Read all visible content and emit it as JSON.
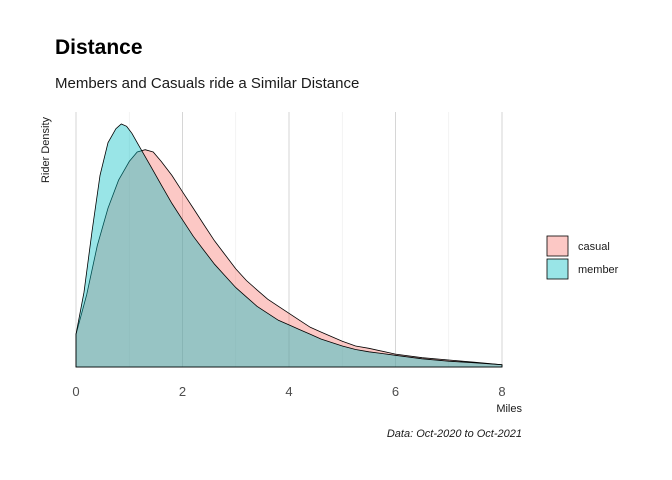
{
  "chart_data": {
    "type": "area",
    "title": "Distance",
    "subtitle": "Members and Casuals ride a Similar Distance",
    "caption": "Data: Oct-2020 to Oct-2021",
    "xlabel": "Miles",
    "ylabel": "Rider Density",
    "xlim": [
      0,
      8
    ],
    "ylim": [
      0,
      1
    ],
    "x_ticks": [
      0,
      2,
      4,
      6,
      8
    ],
    "y_ticks_shown": false,
    "grid": "vertical",
    "legend_position": "right",
    "series": [
      {
        "name": "casual",
        "color": "#F8766D",
        "x": [
          0,
          0.2,
          0.4,
          0.6,
          0.8,
          1.0,
          1.15,
          1.3,
          1.45,
          1.6,
          1.8,
          2.0,
          2.2,
          2.4,
          2.6,
          2.8,
          3.0,
          3.2,
          3.4,
          3.6,
          3.8,
          4.0,
          4.2,
          4.4,
          4.6,
          4.8,
          5.0,
          5.25,
          5.5,
          6.0,
          6.5,
          7.0,
          7.5,
          8.0
        ],
        "y": [
          0.14,
          0.31,
          0.52,
          0.68,
          0.8,
          0.88,
          0.92,
          0.93,
          0.92,
          0.88,
          0.82,
          0.75,
          0.68,
          0.61,
          0.54,
          0.48,
          0.42,
          0.37,
          0.33,
          0.29,
          0.26,
          0.23,
          0.2,
          0.17,
          0.15,
          0.13,
          0.11,
          0.09,
          0.08,
          0.055,
          0.04,
          0.03,
          0.02,
          0.01
        ]
      },
      {
        "name": "member",
        "color": "#00BFC4",
        "x": [
          0,
          0.15,
          0.3,
          0.45,
          0.6,
          0.75,
          0.85,
          0.95,
          1.05,
          1.2,
          1.4,
          1.6,
          1.8,
          2.0,
          2.2,
          2.4,
          2.6,
          2.8,
          3.0,
          3.2,
          3.4,
          3.6,
          3.8,
          4.0,
          4.2,
          4.4,
          4.6,
          4.8,
          5.0,
          5.25,
          5.5,
          6.0,
          6.5,
          7.0,
          7.5,
          8.0
        ],
        "y": [
          0.14,
          0.32,
          0.58,
          0.82,
          0.96,
          1.02,
          1.04,
          1.03,
          1.0,
          0.94,
          0.86,
          0.78,
          0.7,
          0.63,
          0.56,
          0.5,
          0.44,
          0.39,
          0.34,
          0.3,
          0.26,
          0.23,
          0.2,
          0.18,
          0.16,
          0.14,
          0.12,
          0.105,
          0.09,
          0.075,
          0.065,
          0.05,
          0.035,
          0.025,
          0.018,
          0.01
        ]
      }
    ]
  }
}
